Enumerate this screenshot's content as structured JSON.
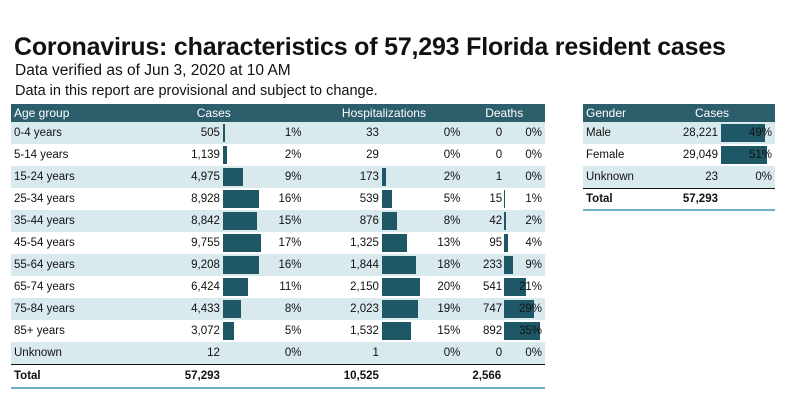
{
  "header": {
    "title": "Coronavirus: characteristics of 57,293 Florida resident cases",
    "subtitle": "Data verified as of Jun 3, 2020 at 10 AM",
    "note": "Data in this report are provisional and subject to change."
  },
  "age_table": {
    "headers": {
      "age_group": "Age group",
      "cases": "Cases",
      "hospitalizations": "Hospitalizations",
      "deaths": "Deaths"
    },
    "rows": [
      {
        "age": "0-4 years",
        "cases": "505",
        "cases_pct": "1%",
        "hosp": "33",
        "hosp_pct": "0%",
        "deaths": "0",
        "deaths_pct": "0%"
      },
      {
        "age": "5-14 years",
        "cases": "1,139",
        "cases_pct": "2%",
        "hosp": "29",
        "hosp_pct": "0%",
        "deaths": "0",
        "deaths_pct": "0%"
      },
      {
        "age": "15-24 years",
        "cases": "4,975",
        "cases_pct": "9%",
        "hosp": "173",
        "hosp_pct": "2%",
        "deaths": "1",
        "deaths_pct": "0%"
      },
      {
        "age": "25-34 years",
        "cases": "8,928",
        "cases_pct": "16%",
        "hosp": "539",
        "hosp_pct": "5%",
        "deaths": "15",
        "deaths_pct": "1%"
      },
      {
        "age": "35-44 years",
        "cases": "8,842",
        "cases_pct": "15%",
        "hosp": "876",
        "hosp_pct": "8%",
        "deaths": "42",
        "deaths_pct": "2%"
      },
      {
        "age": "45-54 years",
        "cases": "9,755",
        "cases_pct": "17%",
        "hosp": "1,325",
        "hosp_pct": "13%",
        "deaths": "95",
        "deaths_pct": "4%"
      },
      {
        "age": "55-64 years",
        "cases": "9,208",
        "cases_pct": "16%",
        "hosp": "1,844",
        "hosp_pct": "18%",
        "deaths": "233",
        "deaths_pct": "9%"
      },
      {
        "age": "65-74 years",
        "cases": "6,424",
        "cases_pct": "11%",
        "hosp": "2,150",
        "hosp_pct": "20%",
        "deaths": "541",
        "deaths_pct": "21%"
      },
      {
        "age": "75-84 years",
        "cases": "4,433",
        "cases_pct": "8%",
        "hosp": "2,023",
        "hosp_pct": "19%",
        "deaths": "747",
        "deaths_pct": "29%"
      },
      {
        "age": "85+ years",
        "cases": "3,072",
        "cases_pct": "5%",
        "hosp": "1,532",
        "hosp_pct": "15%",
        "deaths": "892",
        "deaths_pct": "35%"
      },
      {
        "age": "Unknown",
        "cases": "12",
        "cases_pct": "0%",
        "hosp": "1",
        "hosp_pct": "0%",
        "deaths": "0",
        "deaths_pct": "0%"
      }
    ],
    "total": {
      "label": "Total",
      "cases": "57,293",
      "hosp": "10,525",
      "deaths": "2,566"
    }
  },
  "gender_table": {
    "headers": {
      "gender": "Gender",
      "cases": "Cases"
    },
    "rows": [
      {
        "gender": "Male",
        "cases": "28,221",
        "pct": "49%"
      },
      {
        "gender": "Female",
        "cases": "29,049",
        "pct": "51%"
      },
      {
        "gender": "Unknown",
        "cases": "23",
        "pct": "0%"
      }
    ],
    "total": {
      "label": "Total",
      "cases": "57,293"
    }
  },
  "colors": {
    "header_bg": "#2d5e6b",
    "bar": "#1e5866",
    "stripe": "#d9eaef",
    "bottom_rule": "#6fb1cc"
  }
}
